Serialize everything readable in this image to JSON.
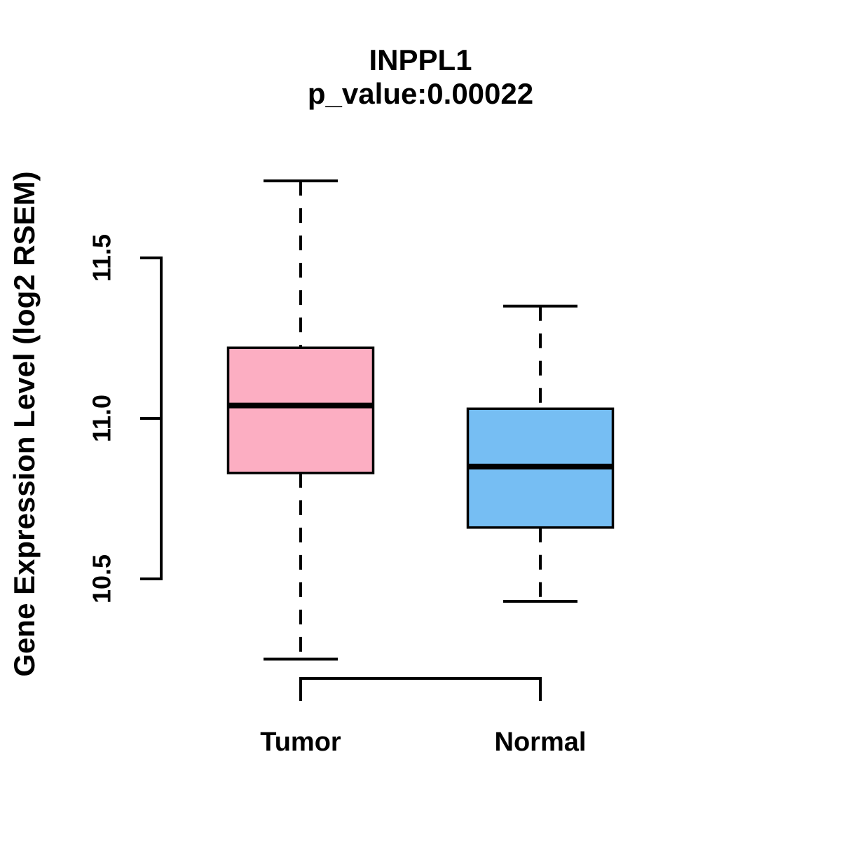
{
  "chart_data": {
    "type": "boxplot",
    "title": "INPPL1",
    "subtitle": "p_value:0.00022",
    "gene": "INPPL1",
    "p_value": "0.00022",
    "ylabel": "Gene Expression Level (log2 RSEM)",
    "xlabel": "",
    "ylim": [
      10.5,
      11.5
    ],
    "yticks": [
      "10.5",
      "11.0",
      "11.5"
    ],
    "ytick_values": [
      10.5,
      11.0,
      11.5
    ],
    "grid": false,
    "legend": "none",
    "categories": [
      "Tumor",
      "Normal"
    ],
    "series": [
      {
        "name": "Tumor",
        "box_color": "#FCAEC2",
        "border_color": "#000000",
        "whisker_low": 10.25,
        "q1": 10.83,
        "median": 11.04,
        "q3": 11.22,
        "whisker_high": 11.74
      },
      {
        "name": "Normal",
        "box_color": "#76BEF3",
        "border_color": "#000000",
        "whisker_low": 10.43,
        "q1": 10.66,
        "median": 10.85,
        "q3": 11.03,
        "whisker_high": 11.35
      }
    ]
  }
}
